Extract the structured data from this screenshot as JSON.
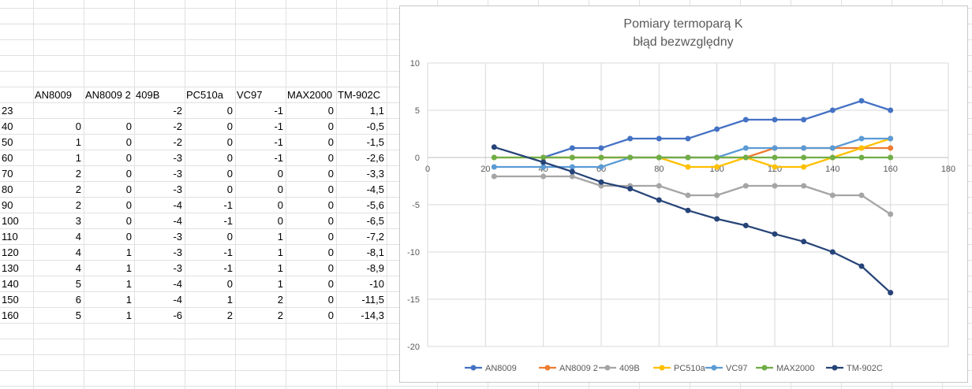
{
  "table": {
    "headers": [
      "AN8009",
      "AN8009 2",
      "409B",
      "PC510a",
      "VC97",
      "MAX2000",
      "TM-902C"
    ],
    "rows": [
      [
        "23",
        "",
        "",
        "-2",
        "0",
        "-1",
        "0",
        "1,1"
      ],
      [
        "40",
        "0",
        "0",
        "-2",
        "0",
        "-1",
        "0",
        "-0,5"
      ],
      [
        "50",
        "1",
        "0",
        "-2",
        "0",
        "-1",
        "0",
        "-1,5"
      ],
      [
        "60",
        "1",
        "0",
        "-3",
        "0",
        "-1",
        "0",
        "-2,6"
      ],
      [
        "70",
        "2",
        "0",
        "-3",
        "0",
        "0",
        "0",
        "-3,3"
      ],
      [
        "80",
        "2",
        "0",
        "-3",
        "0",
        "0",
        "0",
        "-4,5"
      ],
      [
        "90",
        "2",
        "0",
        "-4",
        "-1",
        "0",
        "0",
        "-5,6"
      ],
      [
        "100",
        "3",
        "0",
        "-4",
        "-1",
        "0",
        "0",
        "-6,5"
      ],
      [
        "110",
        "4",
        "0",
        "-3",
        "0",
        "1",
        "0",
        "-7,2"
      ],
      [
        "120",
        "4",
        "1",
        "-3",
        "-1",
        "1",
        "0",
        "-8,1"
      ],
      [
        "130",
        "4",
        "1",
        "-3",
        "-1",
        "1",
        "0",
        "-8,9"
      ],
      [
        "140",
        "5",
        "1",
        "-4",
        "0",
        "1",
        "0",
        "-10"
      ],
      [
        "150",
        "6",
        "1",
        "-4",
        "1",
        "2",
        "0",
        "-11,5"
      ],
      [
        "160",
        "5",
        "1",
        "-6",
        "2",
        "2",
        "0",
        "-14,3"
      ]
    ]
  },
  "chart_data": {
    "type": "line",
    "title": "Pomiary termoparą K",
    "subtitle": "błąd bezwzględny",
    "xlabel": "",
    "ylabel": "",
    "xlim": [
      0,
      180
    ],
    "ylim": [
      -20,
      10
    ],
    "x_ticks": [
      0,
      20,
      40,
      60,
      80,
      100,
      120,
      140,
      160,
      180
    ],
    "y_ticks": [
      10,
      5,
      0,
      -5,
      -10,
      -15,
      -20
    ],
    "grid": true,
    "legend_position": "bottom",
    "x": [
      23,
      40,
      50,
      60,
      70,
      80,
      90,
      100,
      110,
      120,
      130,
      140,
      150,
      160
    ],
    "series": [
      {
        "name": "AN8009",
        "color": "#4472c4",
        "values": [
          null,
          0,
          1,
          1,
          2,
          2,
          2,
          3,
          4,
          4,
          4,
          5,
          6,
          5
        ]
      },
      {
        "name": "AN8009 2",
        "color": "#ed7d31",
        "values": [
          null,
          0,
          0,
          0,
          0,
          0,
          0,
          0,
          0,
          1,
          1,
          1,
          1,
          1
        ]
      },
      {
        "name": "409B",
        "color": "#a5a5a5",
        "values": [
          -2,
          -2,
          -2,
          -3,
          -3,
          -3,
          -4,
          -4,
          -3,
          -3,
          -3,
          -4,
          -4,
          -6
        ]
      },
      {
        "name": "PC510a",
        "color": "#ffc000",
        "values": [
          0,
          0,
          0,
          0,
          0,
          0,
          -1,
          -1,
          0,
          -1,
          -1,
          0,
          1,
          2
        ]
      },
      {
        "name": "VC97",
        "color": "#5b9bd5",
        "values": [
          -1,
          -1,
          -1,
          -1,
          0,
          0,
          0,
          0,
          1,
          1,
          1,
          1,
          2,
          2
        ]
      },
      {
        "name": "MAX2000",
        "color": "#70ad47",
        "values": [
          0,
          0,
          0,
          0,
          0,
          0,
          0,
          0,
          0,
          0,
          0,
          0,
          0,
          0
        ]
      },
      {
        "name": "TM-902C",
        "color": "#264478",
        "values": [
          1.1,
          -0.5,
          -1.5,
          -2.6,
          -3.3,
          -4.5,
          -5.6,
          -6.5,
          -7.2,
          -8.1,
          -8.9,
          -10,
          -11.5,
          -14.3
        ]
      }
    ]
  }
}
